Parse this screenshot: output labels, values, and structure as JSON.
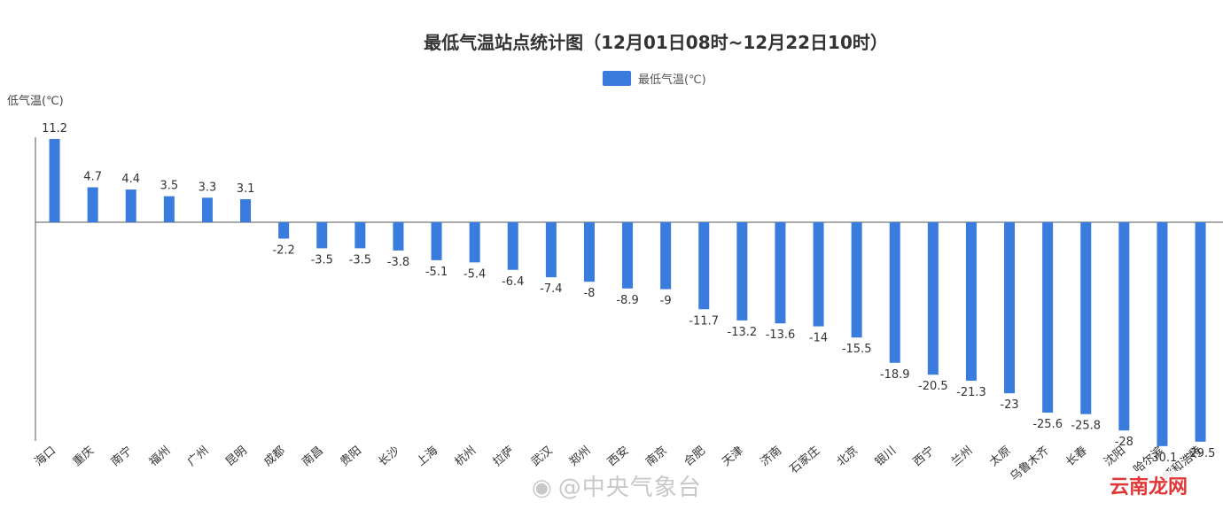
{
  "chart_data": {
    "type": "bar",
    "title": "最低气温站点统计图（12月01日08时~12月22日10时）",
    "ylabel": "低气温(℃)",
    "xlabel": "",
    "legend": {
      "label": "最低气温(℃)",
      "position": "top-center"
    },
    "color": "#3a7bde",
    "grid": false,
    "ylim": [
      -30,
      12
    ],
    "categories": [
      "海口",
      "重庆",
      "南宁",
      "福州",
      "广州",
      "昆明",
      "成都",
      "南昌",
      "贵阳",
      "长沙",
      "上海",
      "杭州",
      "拉萨",
      "武汉",
      "郑州",
      "西安",
      "南京",
      "合肥",
      "天津",
      "济南",
      "石家庄",
      "北京",
      "银川",
      "西宁",
      "兰州",
      "太原",
      "乌鲁木齐",
      "长春",
      "沈阳",
      "哈尔滨",
      "呼和浩特"
    ],
    "category_labels_visible": [
      "海口",
      "重庆",
      "南宁",
      "福州",
      "广州",
      "昆明",
      "成都",
      "南昌",
      "贵阳",
      "长沙",
      "上海",
      "杭州",
      "拉萨",
      "武汉",
      "郑州",
      "西安",
      "南京",
      "合肥",
      "天津",
      "济南",
      "石家庄",
      "北京",
      "银川",
      "西宁",
      "兰州",
      "太原",
      "乌鲁木齐",
      "长春",
      "沈阳",
      "哈尔滨",
      "呼和浩特"
    ],
    "values": [
      11.2,
      4.7,
      4.4,
      3.5,
      3.3,
      3.1,
      -2.2,
      -3.5,
      -3.5,
      -3.8,
      -5.1,
      -5.4,
      -6.4,
      -7.4,
      -8,
      -8.9,
      -9,
      -11.7,
      -13.2,
      -13.6,
      -14,
      -15.5,
      -18.9,
      -20.5,
      -21.3,
      -23,
      -25.6,
      -25.8,
      -28,
      -30.1,
      -29.5
    ]
  },
  "watermark": {
    "icon": "weibo-icon",
    "text": "@中央气象台"
  },
  "site_badge": {
    "text": "云南龙网"
  }
}
